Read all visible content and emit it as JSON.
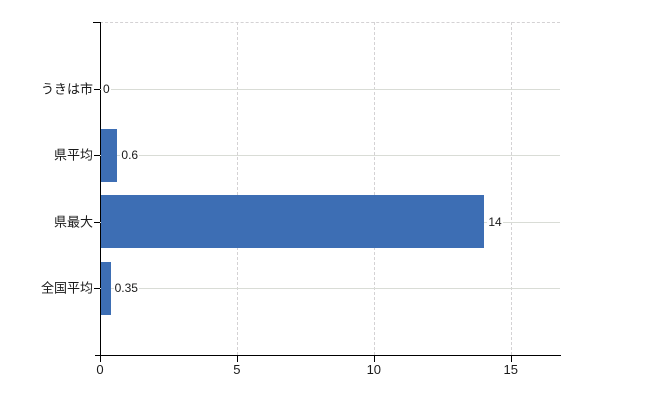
{
  "chart_data": {
    "type": "bar",
    "orientation": "horizontal",
    "title": "",
    "xlabel": "",
    "ylabel": "",
    "categories": [
      "うきは市",
      "県平均",
      "県最大",
      "全国平均"
    ],
    "values": [
      0,
      0.6,
      14,
      0.35
    ],
    "value_labels": [
      "0",
      "0.6",
      "14",
      "0.35"
    ],
    "x_ticks": [
      0,
      5,
      10,
      15
    ],
    "x_tick_labels": [
      "0",
      "5",
      "10",
      "15"
    ],
    "xlim": [
      0,
      16.8
    ],
    "grid": {
      "vertical_gridlines": "dashed",
      "horizontal_gridlines": "solid",
      "top_border": "dashed"
    },
    "legend": "none",
    "colors": {
      "bar": "#3d6eb4",
      "gridline_solid": "#d9dcd6",
      "gridline_dashed": "#d4d2d4",
      "axis": "#000000",
      "text": "#1a1a1a",
      "background": "#ffffff"
    }
  }
}
